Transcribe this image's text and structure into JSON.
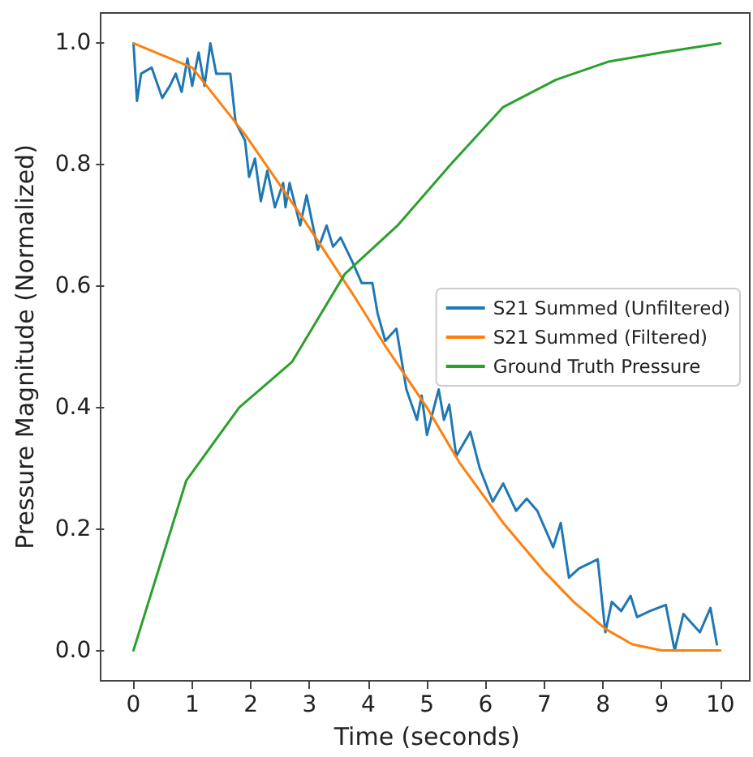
{
  "chart_data": {
    "type": "line",
    "xlabel": "Time (seconds)",
    "ylabel": "Pressure Magnitude (Normalized)",
    "xlim": [
      -0.5,
      10.5
    ],
    "xticks": [
      0,
      1,
      2,
      3,
      4,
      5,
      6,
      7,
      8,
      9,
      10
    ],
    "ylim": [
      -0.05,
      1.05
    ],
    "yticks": [
      {
        "value": 0,
        "label": "0.0"
      },
      {
        "value": 0.2,
        "label": "0.2"
      },
      {
        "value": 0.4,
        "label": "0.4"
      },
      {
        "value": 0.6,
        "label": "0.6"
      },
      {
        "value": 0.8,
        "label": "0.8"
      },
      {
        "value": 1,
        "label": "1.0"
      }
    ],
    "grid": false,
    "legend": "right",
    "marker": "none",
    "line_style": "solid",
    "series": [
      {
        "name": "S21 Summed (Unfiltered)",
        "color": "#1f77b4",
        "x": [
          0,
          0.06,
          0.13,
          0.31,
          0.49,
          0.62,
          0.72,
          0.82,
          0.92,
          1.0,
          1.11,
          1.21,
          1.31,
          1.41,
          1.65,
          1.74,
          1.9,
          1.97,
          2.07,
          2.17,
          2.28,
          2.41,
          2.55,
          2.59,
          2.66,
          2.84,
          2.95,
          3.14,
          3.29,
          3.4,
          3.53,
          3.73,
          3.89,
          4.07,
          4.16,
          4.29,
          4.48,
          4.65,
          4.83,
          4.91,
          5.0,
          5.2,
          5.29,
          5.38,
          5.5,
          5.74,
          5.9,
          6.12,
          6.3,
          6.52,
          6.7,
          6.88,
          7.15,
          7.28,
          7.42,
          7.59,
          7.91,
          8.04,
          8.15,
          8.31,
          8.47,
          8.58,
          8.8,
          9.07,
          9.22,
          9.37,
          9.65,
          9.83,
          9.94
        ],
        "values": [
          1.0,
          0.905,
          0.95,
          0.96,
          0.91,
          0.93,
          0.95,
          0.92,
          0.975,
          0.93,
          0.985,
          0.93,
          1.0,
          0.95,
          0.95,
          0.87,
          0.84,
          0.78,
          0.81,
          0.74,
          0.79,
          0.73,
          0.77,
          0.73,
          0.77,
          0.7,
          0.75,
          0.66,
          0.7,
          0.665,
          0.68,
          0.64,
          0.605,
          0.605,
          0.555,
          0.51,
          0.53,
          0.43,
          0.38,
          0.42,
          0.355,
          0.43,
          0.38,
          0.405,
          0.32,
          0.36,
          0.3,
          0.245,
          0.275,
          0.23,
          0.25,
          0.23,
          0.17,
          0.21,
          0.12,
          0.135,
          0.15,
          0.03,
          0.08,
          0.065,
          0.09,
          0.055,
          0.065,
          0.075,
          0.0,
          0.06,
          0.03,
          0.07,
          0.01
        ]
      },
      {
        "name": "S21 Summed (Filtered)",
        "color": "#ff7f0e",
        "x": [
          0,
          1,
          1.9,
          2.9,
          3.75,
          4.3,
          5.0,
          5.55,
          6.3,
          7,
          7.5,
          8.05,
          8.5,
          9,
          10
        ],
        "values": [
          1.0,
          0.96,
          0.85,
          0.71,
          0.585,
          0.5,
          0.4,
          0.31,
          0.21,
          0.13,
          0.08,
          0.035,
          0.01,
          0.0,
          0.0
        ]
      },
      {
        "name": "Ground Truth Pressure",
        "color": "#2ca02c",
        "x": [
          0,
          0.9,
          1.8,
          2.7,
          3.6,
          4.5,
          5.4,
          6.3,
          7.2,
          8.1,
          9,
          10
        ],
        "values": [
          0,
          0.28,
          0.4,
          0.475,
          0.62,
          0.7,
          0.8,
          0.895,
          0.94,
          0.97,
          0.985,
          1.0
        ]
      }
    ]
  }
}
